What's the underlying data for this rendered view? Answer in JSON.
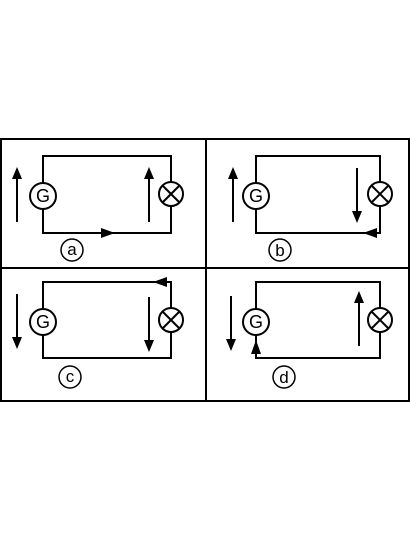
{
  "panels": [
    {
      "label": "a",
      "generator": "G",
      "generator_current": "up",
      "lamp_current": "up",
      "wire_arrow": "bottom-right"
    },
    {
      "label": "b",
      "generator": "G",
      "generator_current": "up",
      "lamp_current": "down",
      "wire_arrow": "bottom-left"
    },
    {
      "label": "c",
      "generator": "G",
      "generator_current": "down",
      "lamp_current": "down",
      "wire_arrow": "top-left"
    },
    {
      "label": "d",
      "generator": "G",
      "generator_current": "down",
      "lamp_current": "up",
      "wire_arrow": "left-up"
    }
  ]
}
